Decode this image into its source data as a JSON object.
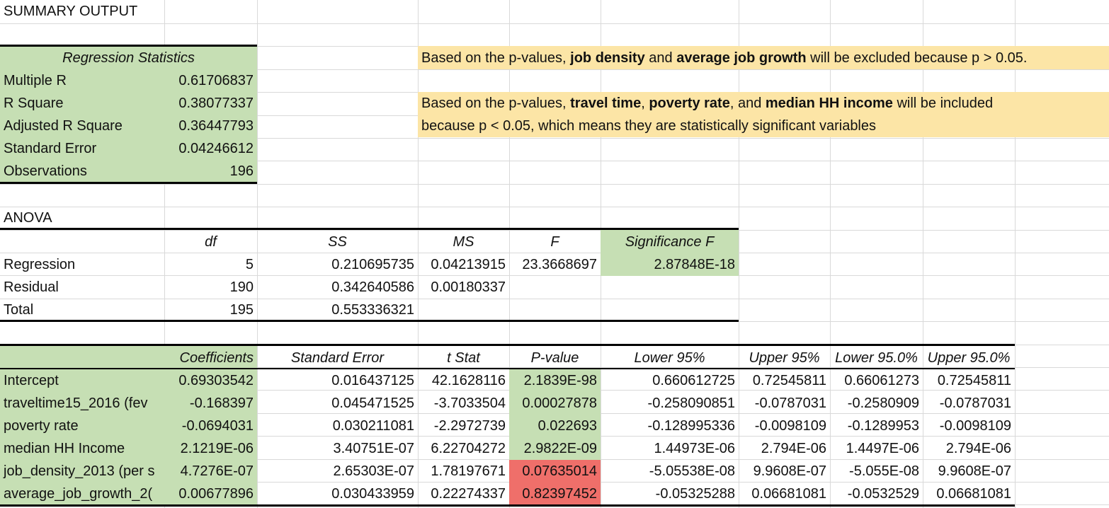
{
  "colors": {
    "green": "#c6dfb4",
    "note": "#fce5a6",
    "red": "#ef6f6a",
    "grid": "#d9d9d9"
  },
  "title": "SUMMARY OUTPUT",
  "reg_header": "Regression Statistics",
  "reg_stats": [
    {
      "label": "Multiple R",
      "value": "0.61706837"
    },
    {
      "label": "R Square",
      "value": "0.38077337"
    },
    {
      "label": "Adjusted R Square",
      "value": "0.36447793"
    },
    {
      "label": "Standard Error",
      "value": "0.04246612"
    },
    {
      "label": "Observations",
      "value": "196"
    }
  ],
  "notes": {
    "n1": [
      {
        "t": "Based on the p-values, ",
        "b": false
      },
      {
        "t": "job density",
        "b": true
      },
      {
        "t": " and ",
        "b": false
      },
      {
        "t": "average job growth",
        "b": true
      },
      {
        "t": " will be excluded because p > 0.05.",
        "b": false
      }
    ],
    "n2": [
      {
        "t": "Based on the p-values, ",
        "b": false
      },
      {
        "t": "travel time",
        "b": true
      },
      {
        "t": ",  ",
        "b": false
      },
      {
        "t": "poverty rate",
        "b": true
      },
      {
        "t": ", and ",
        "b": false
      },
      {
        "t": "median HH income",
        "b": true
      },
      {
        "t": " will be included",
        "b": false
      }
    ],
    "n3": [
      {
        "t": "because p < 0.05, which means they are statistically significant variables",
        "b": false
      }
    ]
  },
  "anova_title": "ANOVA",
  "anova_headers": [
    "df",
    "SS",
    "MS",
    "F",
    "Significance F"
  ],
  "anova_rows": [
    {
      "label": "Regression",
      "df": "5",
      "ss": "0.210695735",
      "ms": "0.04213915",
      "f": "23.3668697",
      "sig": "2.87848E-18"
    },
    {
      "label": "Residual",
      "df": "190",
      "ss": "0.342640586",
      "ms": "0.00180337",
      "f": "",
      "sig": ""
    },
    {
      "label": "Total",
      "df": "195",
      "ss": "0.553336321",
      "ms": "",
      "f": "",
      "sig": ""
    }
  ],
  "coef_headers": [
    "Coefficients",
    "Standard Error",
    "t Stat",
    "P-value",
    "Lower 95%",
    "Upper 95%",
    "Lower 95.0%",
    "Upper 95.0%"
  ],
  "coef_rows": [
    {
      "label": "Intercept",
      "coef": "0.69303542",
      "se": "0.016437125",
      "t": "42.1628116",
      "p": "2.1839E-98",
      "lo95": "0.660612725",
      "up95": "0.72545811",
      "lo950": "0.66061273",
      "up950": "0.72545811",
      "p_status": "green"
    },
    {
      "label": "traveltime15_2016 (fev",
      "coef": "-0.168397",
      "se": "0.045471525",
      "t": "-3.7033504",
      "p": "0.00027878",
      "lo95": "-0.258090851",
      "up95": "-0.0787031",
      "lo950": "-0.2580909",
      "up950": "-0.0787031",
      "p_status": "green"
    },
    {
      "label": "poverty rate",
      "coef": "-0.0694031",
      "se": "0.030211081",
      "t": "-2.2972739",
      "p": "0.022693",
      "lo95": "-0.128995336",
      "up95": "-0.0098109",
      "lo950": "-0.1289953",
      "up950": "-0.0098109",
      "p_status": "green"
    },
    {
      "label": "median HH Income",
      "coef": "2.1219E-06",
      "se": "3.40751E-07",
      "t": "6.22704272",
      "p": "2.9822E-09",
      "lo95": "1.44973E-06",
      "up95": "2.794E-06",
      "lo950": "1.4497E-06",
      "up950": "2.794E-06",
      "p_status": "green"
    },
    {
      "label": "job_density_2013 (per s",
      "coef": "4.7276E-07",
      "se": "2.65303E-07",
      "t": "1.78197671",
      "p": "0.07635014",
      "lo95": "-5.05538E-08",
      "up95": "9.9608E-07",
      "lo950": "-5.055E-08",
      "up950": "9.9608E-07",
      "p_status": "red"
    },
    {
      "label": "average_job_growth_2(",
      "coef": "0.00677896",
      "se": "0.030433959",
      "t": "0.22274337",
      "p": "0.82397452",
      "lo95": "-0.05325288",
      "up95": "0.06681081",
      "lo950": "-0.0532529",
      "up950": "0.06681081",
      "p_status": "red"
    }
  ]
}
